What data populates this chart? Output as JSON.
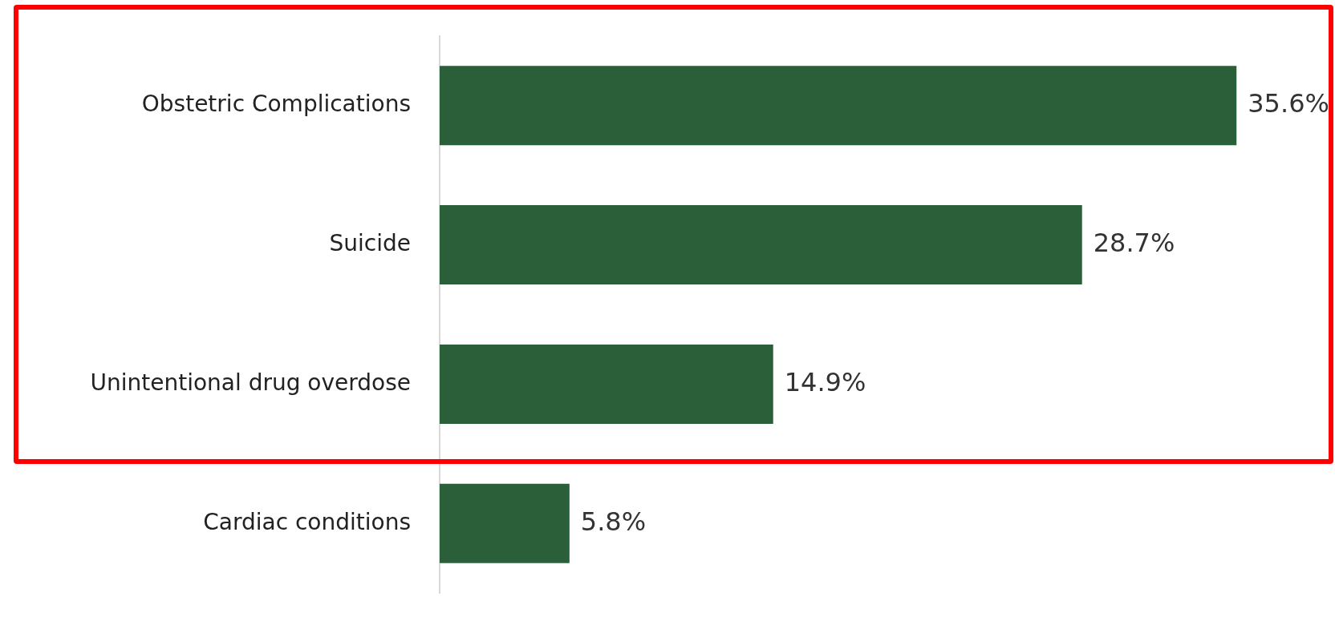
{
  "chart_data": {
    "type": "bar",
    "orientation": "horizontal",
    "categories": [
      "Obstetric Complications",
      "Suicide",
      "Unintentional drug overdose",
      "Cardiac conditions"
    ],
    "values": [
      35.6,
      28.7,
      14.9,
      5.8
    ],
    "value_labels": [
      "35.6%",
      "28.7%",
      "14.9%",
      "5.8%"
    ],
    "color": "#2a5f3a",
    "xlim": [
      0,
      40
    ],
    "tick_labels": "y"
  }
}
